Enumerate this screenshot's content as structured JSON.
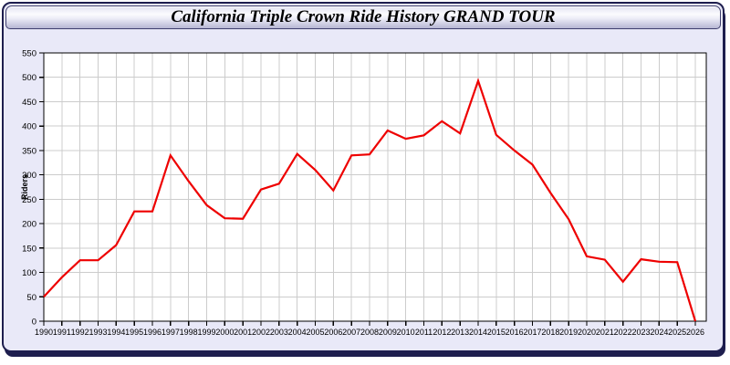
{
  "window": {
    "title": "California Triple Crown Ride History GRAND TOUR"
  },
  "chart_data": {
    "type": "line",
    "title": "California Triple Crown Ride History GRAND TOUR",
    "xlabel": "",
    "ylabel": "Riders",
    "categories": [
      1990,
      1991,
      1992,
      1993,
      1994,
      1995,
      1996,
      1997,
      1998,
      1999,
      2000,
      2001,
      2002,
      2003,
      2004,
      2005,
      2006,
      2007,
      2008,
      2009,
      2010,
      2011,
      2012,
      2013,
      2014,
      2015,
      2016,
      2017,
      2018,
      2019,
      2020,
      2021,
      2022,
      2023,
      2024,
      2025,
      2026
    ],
    "series": [
      {
        "name": "Riders",
        "color": "#ee0000",
        "values": [
          50,
          90,
          125,
          125,
          156,
          225,
          225,
          340,
          287,
          238,
          211,
          210,
          270,
          282,
          343,
          310,
          268,
          340,
          342,
          391,
          374,
          381,
          410,
          385,
          493,
          382,
          350,
          321,
          263,
          209,
          133,
          126,
          81,
          127,
          122,
          121,
          0
        ]
      }
    ],
    "ylim": [
      0,
      550
    ],
    "ytick_step": 50,
    "grid": true,
    "legend": "none",
    "plot_bg": "#ffffff",
    "grid_color": "#cccccc",
    "axis_color": "#000000",
    "tick_label_color": "#000000"
  },
  "colors": {
    "window_bg": "#e9e9f8",
    "window_border": "#1e1e4e",
    "titlebar_gradient_top": "#e3e3f2",
    "titlebar_gradient_mid": "#fbfbfe",
    "titlebar_gradient_bottom": "#b7b7d3",
    "title_text": "#000000",
    "line_color": "#ee0000"
  }
}
